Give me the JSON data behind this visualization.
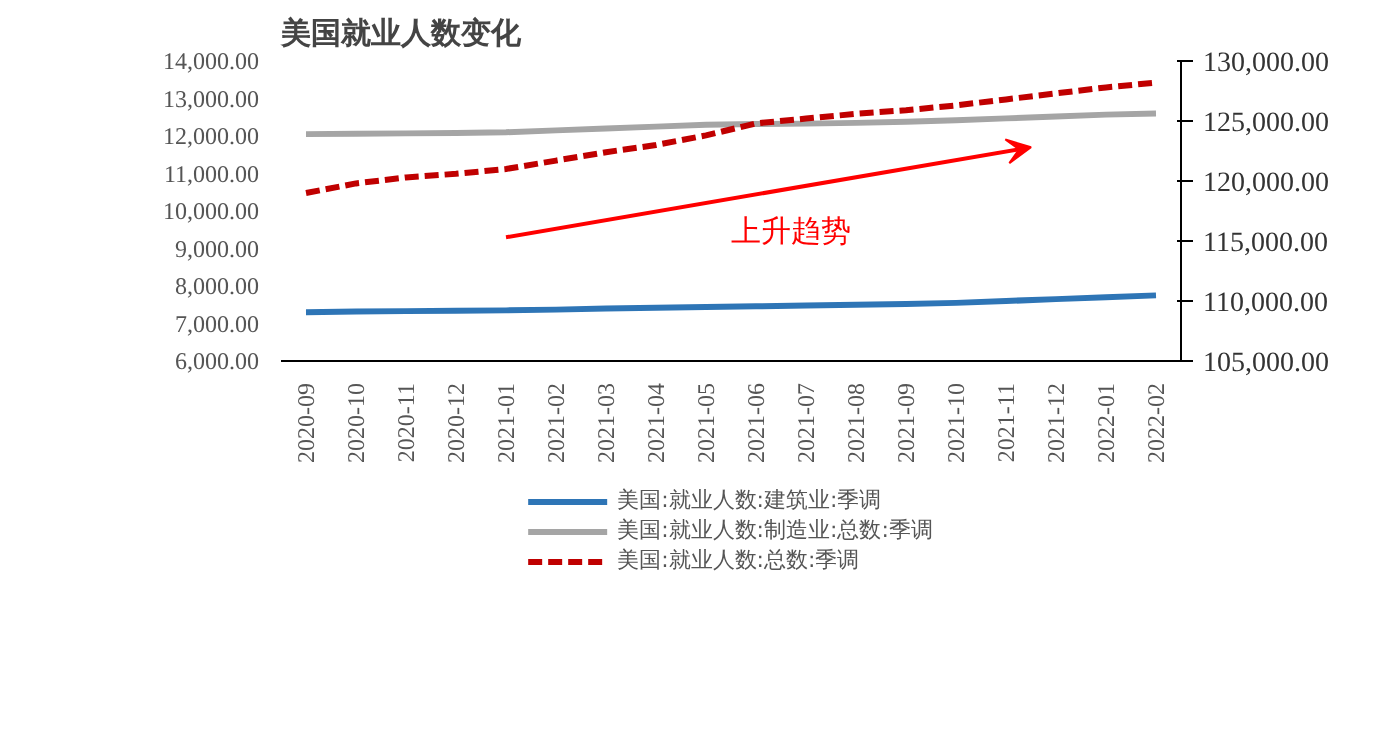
{
  "chart_data": {
    "type": "line",
    "title": "美国就业人数变化",
    "categories": [
      "2020-09",
      "2020-10",
      "2020-11",
      "2020-12",
      "2021-01",
      "2021-02",
      "2021-03",
      "2021-04",
      "2021-05",
      "2021-06",
      "2021-07",
      "2021-08",
      "2021-09",
      "2021-10",
      "2021-11",
      "2021-12",
      "2022-01",
      "2022-02"
    ],
    "series": [
      {
        "name": "美国:就业人数:建筑业:季调",
        "color": "#2e75b6",
        "values": [
          7300,
          7320,
          7330,
          7340,
          7350,
          7370,
          7400,
          7420,
          7440,
          7460,
          7480,
          7500,
          7520,
          7550,
          7600,
          7650,
          7700,
          7750
        ]
      },
      {
        "name": "美国:就业人数:制造业:总数:季调",
        "color": "#a5a5a5",
        "values": [
          12050,
          12060,
          12070,
          12080,
          12100,
          12150,
          12200,
          12250,
          12300,
          12320,
          12330,
          12350,
          12380,
          12420,
          12470,
          12520,
          12570,
          12600
        ]
      },
      {
        "name": "美国:就业人数:总数:季调",
        "color": "#c00000",
        "axis": "y2",
        "line_style": "dashed",
        "values": [
          119000,
          119800,
          120300,
          120600,
          121000,
          121700,
          122400,
          123000,
          123800,
          124800,
          125200,
          125600,
          125900,
          126300,
          126800,
          127300,
          127800,
          128200
        ]
      }
    ],
    "ylim": [
      6000,
      14000
    ],
    "yticks": [
      {
        "value": 6000,
        "label": "6,000.00"
      },
      {
        "value": 7000,
        "label": "7,000.00"
      },
      {
        "value": 8000,
        "label": "8,000.00"
      },
      {
        "value": 9000,
        "label": "9,000.00"
      },
      {
        "value": 10000,
        "label": "10,000.00"
      },
      {
        "value": 11000,
        "label": "11,000.00"
      },
      {
        "value": 12000,
        "label": "12,000.00"
      },
      {
        "value": 13000,
        "label": "13,000.00"
      },
      {
        "value": 14000,
        "label": "14,000.00"
      }
    ],
    "y2lim": [
      105000,
      130000
    ],
    "y2ticks": [
      {
        "value": 105000,
        "label": "105,000.00"
      },
      {
        "value": 110000,
        "label": "110,000.00"
      },
      {
        "value": 115000,
        "label": "115,000.00"
      },
      {
        "value": 120000,
        "label": "120,000.00"
      },
      {
        "value": 125000,
        "label": "125,000.00"
      },
      {
        "value": 130000,
        "label": "130,000.00"
      }
    ],
    "annotations": [
      "上升趋势"
    ],
    "legend": "bottom",
    "grid": false,
    "line_style": "solid",
    "marker": "none"
  }
}
